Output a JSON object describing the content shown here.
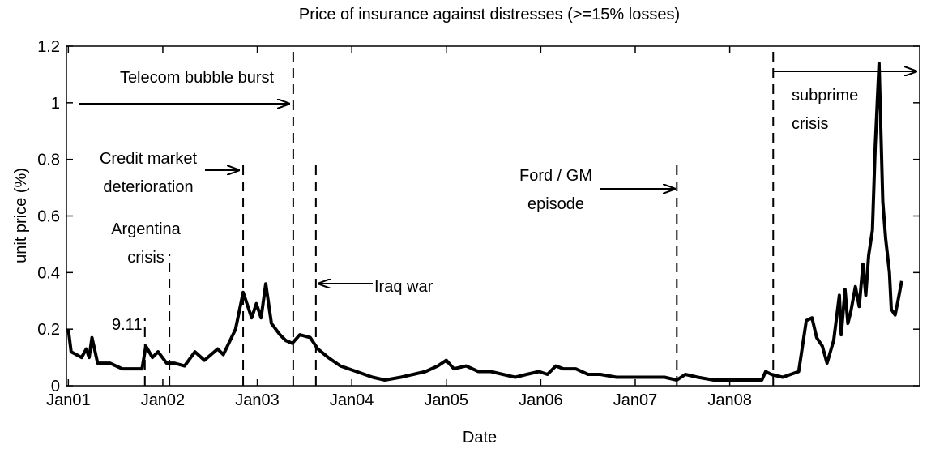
{
  "chart_data": {
    "type": "line",
    "title": "Price of insurance against distresses (>=15% losses)",
    "xlabel": "Date",
    "ylabel": "unit price (%)",
    "xlim": [
      2000.98,
      2010.01
    ],
    "ylim": [
      0,
      1.2
    ],
    "xticks": [
      {
        "value": 2001,
        "label": "Jan01"
      },
      {
        "value": 2002,
        "label": "Jan02"
      },
      {
        "value": 2003,
        "label": "Jan03"
      },
      {
        "value": 2004,
        "label": "Jan04"
      },
      {
        "value": 2005,
        "label": "Jan05"
      },
      {
        "value": 2006,
        "label": "Jan06"
      },
      {
        "value": 2007,
        "label": "Jan07"
      },
      {
        "value": 2008,
        "label": "Jan08"
      }
    ],
    "yticks": [
      0,
      0.2,
      0.4,
      0.6,
      0.8,
      1,
      1.2
    ],
    "grid": false,
    "series": [
      {
        "color": "#000000",
        "x": [
          2001.0,
          2001.03,
          2001.14,
          2001.19,
          2001.22,
          2001.25,
          2001.31,
          2001.44,
          2001.57,
          2001.78,
          2001.82,
          2001.89,
          2001.95,
          2002.04,
          2002.12,
          2002.23,
          2002.34,
          2002.44,
          2002.58,
          2002.64,
          2002.77,
          2002.85,
          2002.94,
          2002.99,
          2003.04,
          2003.09,
          2003.15,
          2003.24,
          2003.3,
          2003.37,
          2003.45,
          2003.56,
          2003.64,
          2003.75,
          2003.88,
          2004.05,
          2004.22,
          2004.35,
          2004.52,
          2004.65,
          2004.78,
          2004.91,
          2005.0,
          2005.08,
          2005.21,
          2005.34,
          2005.47,
          2005.6,
          2005.73,
          2005.85,
          2005.98,
          2006.07,
          2006.16,
          2006.24,
          2006.37,
          2006.5,
          2006.63,
          2006.8,
          2006.97,
          2007.14,
          2007.31,
          2007.44,
          2007.53,
          2007.66,
          2007.83,
          2008.0,
          2008.17,
          2008.34,
          2008.38,
          2008.44,
          2008.56,
          2008.73,
          2008.81,
          2008.87,
          2008.92,
          2008.98,
          2009.03,
          2009.1,
          2009.16,
          2009.18,
          2009.22,
          2009.25,
          2009.28,
          2009.33,
          2009.37,
          2009.41,
          2009.44,
          2009.47,
          2009.51,
          2009.54,
          2009.58,
          2009.62,
          2009.65,
          2009.69,
          2009.71,
          2009.75,
          2009.78,
          2009.82
        ],
        "values": [
          0.2,
          0.12,
          0.1,
          0.13,
          0.1,
          0.17,
          0.08,
          0.08,
          0.06,
          0.06,
          0.14,
          0.1,
          0.12,
          0.08,
          0.08,
          0.07,
          0.12,
          0.09,
          0.13,
          0.11,
          0.2,
          0.33,
          0.24,
          0.29,
          0.24,
          0.36,
          0.22,
          0.18,
          0.16,
          0.15,
          0.18,
          0.17,
          0.13,
          0.1,
          0.07,
          0.05,
          0.03,
          0.02,
          0.03,
          0.04,
          0.05,
          0.07,
          0.09,
          0.06,
          0.07,
          0.05,
          0.05,
          0.04,
          0.03,
          0.04,
          0.05,
          0.04,
          0.07,
          0.06,
          0.06,
          0.04,
          0.04,
          0.03,
          0.03,
          0.03,
          0.03,
          0.02,
          0.04,
          0.03,
          0.02,
          0.02,
          0.02,
          0.02,
          0.05,
          0.04,
          0.03,
          0.05,
          0.23,
          0.24,
          0.17,
          0.14,
          0.08,
          0.16,
          0.32,
          0.18,
          0.34,
          0.22,
          0.26,
          0.35,
          0.28,
          0.43,
          0.32,
          0.46,
          0.55,
          0.85,
          1.14,
          0.65,
          0.52,
          0.4,
          0.27,
          0.25,
          0.3,
          0.37
        ]
      }
    ],
    "events": [
      2001.81,
      2002.07,
      2002.85,
      2003.38,
      2003.62,
      2007.44,
      2008.46
    ],
    "annotations": [
      [
        "Telecom bubble burst"
      ],
      [
        "Credit market",
        "deterioration"
      ],
      [
        "Argentina",
        "crisis"
      ],
      [
        "9.11"
      ],
      [
        "Iraq war"
      ],
      [
        "Ford / GM",
        "episode"
      ],
      [
        "subprime",
        "crisis"
      ]
    ]
  }
}
